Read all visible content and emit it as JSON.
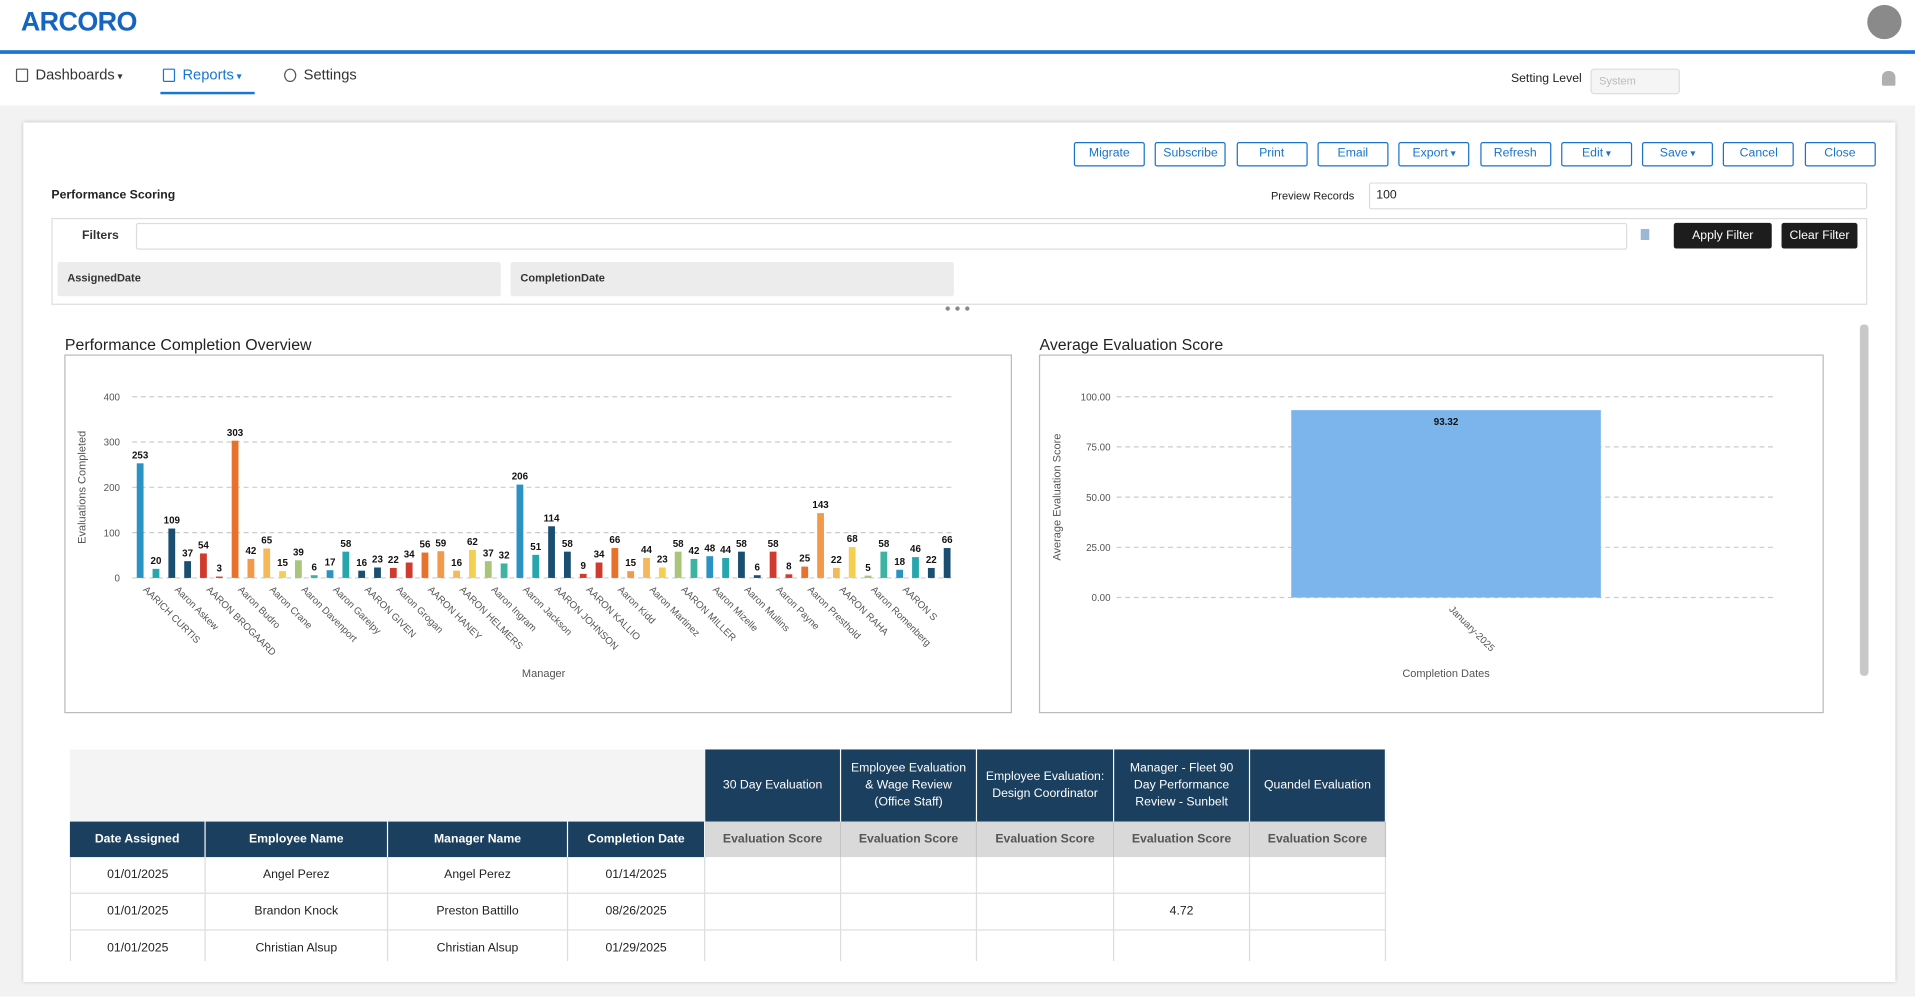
{
  "header": {
    "logo": "ARCORO"
  },
  "nav": {
    "items": [
      "Dashboards",
      "Reports",
      "Settings"
    ],
    "setting_level_label": "Setting Level",
    "setting_level_value": "System"
  },
  "toolbar": {
    "buttons": [
      "Migrate",
      "Subscribe",
      "Print",
      "Email",
      "Export",
      "Refresh",
      "Edit",
      "Save",
      "Cancel",
      "Close"
    ]
  },
  "report": {
    "title": "Performance Scoring",
    "preview_label": "Preview Records",
    "preview_value": "100"
  },
  "filters": {
    "label": "Filters",
    "apply": "Apply Filter",
    "clear": "Clear Filter",
    "fields": [
      "AssignedDate",
      "CompletionDate"
    ]
  },
  "chart_data": [
    {
      "type": "bar",
      "title": "Performance Completion Overview",
      "y_label": "Evaluations Completed",
      "x_label": "Manager",
      "categories": [
        "AARICH CURTIS",
        null,
        "Aaron Askew",
        null,
        "AARON BROGAARD",
        null,
        "Aaron Budro",
        null,
        "Aaron Crane",
        null,
        "Aaron Davenport",
        null,
        "Aaron Garelpy",
        null,
        "AARON GIVEN",
        null,
        "Aaron Grogan",
        null,
        "AARON HANEY",
        null,
        "AARON HELMERS",
        null,
        "Aaron Ingram",
        null,
        "Aaron Jackson",
        null,
        "AARON JOHNSON",
        null,
        "AARON KALLIO",
        null,
        "Aaron Kidd",
        null,
        "Aaron Martinez",
        null,
        "AARON MILLER",
        null,
        "Aaron Mizelle",
        null,
        "Aaron Mullins",
        null,
        "Aaron Payne",
        null,
        "Aaron Presthold",
        null,
        "AARON RAHA",
        null,
        "Aaron Romenberg",
        null,
        "AARON S",
        null,
        null,
        null
      ],
      "values": [
        253,
        20,
        109,
        37,
        54,
        3,
        303,
        42,
        65,
        15,
        39,
        6,
        17,
        58,
        16,
        23,
        22,
        34,
        56,
        59,
        16,
        62,
        37,
        32,
        206,
        51,
        114,
        58,
        9,
        34,
        66,
        15,
        44,
        23,
        58,
        42,
        48,
        44,
        58,
        6,
        58,
        8,
        25,
        143,
        22,
        68,
        5,
        58,
        18,
        46,
        22,
        66
      ],
      "colors": [
        "#2a93c4",
        "#26a6ad",
        "#1b4f72",
        "#1b4f72",
        "#d13a2f",
        "#d13a2f",
        "#e8722c",
        "#f29a4a",
        "#f5b95a",
        "#f5cf4f",
        "#a9c47b",
        "#3db3a2"
      ],
      "ylim": [
        0,
        400
      ],
      "yticks": [
        0,
        100,
        200,
        300,
        400
      ],
      "grid": true
    },
    {
      "type": "bar",
      "title": "Average Evaluation Score",
      "y_label": "Average Evaluation Score",
      "x_label": "Completion Dates",
      "categories": [
        "January-2025"
      ],
      "values": [
        93.32
      ],
      "color": "#7cb5ec",
      "ylim": [
        0,
        100
      ],
      "yticks": [
        {
          "value": 0,
          "label": "0.00"
        },
        {
          "value": 25,
          "label": "25.00"
        },
        {
          "value": 50,
          "label": "50.00"
        },
        {
          "value": 75,
          "label": "75.00"
        },
        {
          "value": 100,
          "label": "100.00"
        }
      ],
      "grid": true
    }
  ],
  "table": {
    "group_headers": [
      "30 Day Evaluation",
      "Employee Evaluation & Wage Review (Office Staff)",
      "Employee Evaluation: Design Coordinator",
      "Manager - Fleet 90 Day Performance Review - Sunbelt",
      "Quandel Evaluation"
    ],
    "columns": [
      "Date Assigned",
      "Employee Name",
      "Manager Name",
      "Completion Date",
      "Evaluation Score",
      "Evaluation Score",
      "Evaluation Score",
      "Evaluation Score",
      "Evaluation Score"
    ],
    "rows": [
      [
        "01/01/2025",
        "Angel Perez",
        "Angel Perez",
        "01/14/2025",
        null,
        null,
        null,
        null,
        null
      ],
      [
        "01/01/2025",
        "Brandon Knock",
        "Preston Battillo",
        "08/26/2025",
        null,
        null,
        null,
        "4.72",
        null
      ],
      [
        "01/01/2025",
        "Christian Alsup",
        "Christian Alsup",
        "01/29/2025",
        null,
        null,
        null,
        null,
        null
      ]
    ]
  }
}
